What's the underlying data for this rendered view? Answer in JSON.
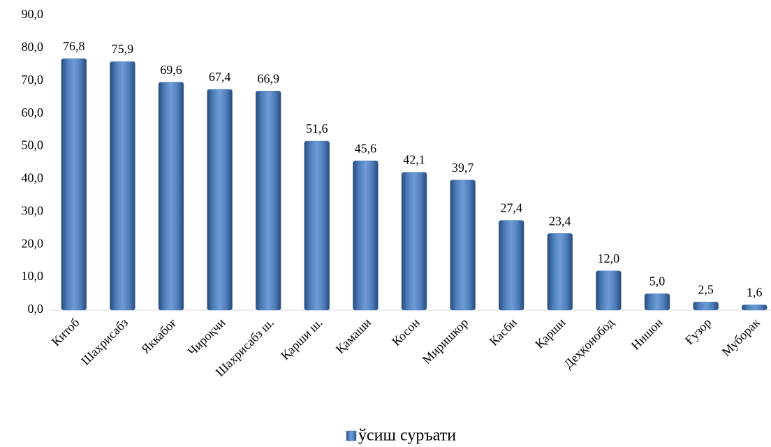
{
  "chart_data": {
    "type": "bar",
    "categories": [
      "Китоб",
      "Шахрисабз",
      "Яккабоғ",
      "Чироқчи",
      "Шахрисабз ш.",
      "Қарши ш.",
      "Қамаши",
      "Косон",
      "Миришкор",
      "Касби",
      "Қарши",
      "Деҳқонобод",
      "Нишон",
      "Ғузор",
      "Муборак"
    ],
    "series": [
      {
        "name": "ўсиш суръати",
        "color": "#4f81bd",
        "values": [
          76.8,
          75.9,
          69.6,
          67.4,
          66.9,
          51.6,
          45.6,
          42.1,
          39.7,
          27.4,
          23.4,
          12.0,
          5.0,
          2.5,
          1.6
        ],
        "value_labels": [
          "76,8",
          "75,9",
          "69,6",
          "67,4",
          "66,9",
          "51,6",
          "45,6",
          "42,1",
          "39,7",
          "27,4",
          "23,4",
          "12,0",
          "5,0",
          "2,5",
          "1,6"
        ]
      }
    ],
    "ylim": [
      0,
      90
    ],
    "yticks": [
      {
        "value": 0,
        "label": "0,0"
      },
      {
        "value": 10,
        "label": "10,0"
      },
      {
        "value": 20,
        "label": "20,0"
      },
      {
        "value": 30,
        "label": "30,0"
      },
      {
        "value": 40,
        "label": "40,0"
      },
      {
        "value": 50,
        "label": "50,0"
      },
      {
        "value": 60,
        "label": "60,0"
      },
      {
        "value": 70,
        "label": "70,0"
      },
      {
        "value": 80,
        "label": "80,0"
      },
      {
        "value": 90,
        "label": "90,0"
      }
    ],
    "legend": "bottom"
  }
}
